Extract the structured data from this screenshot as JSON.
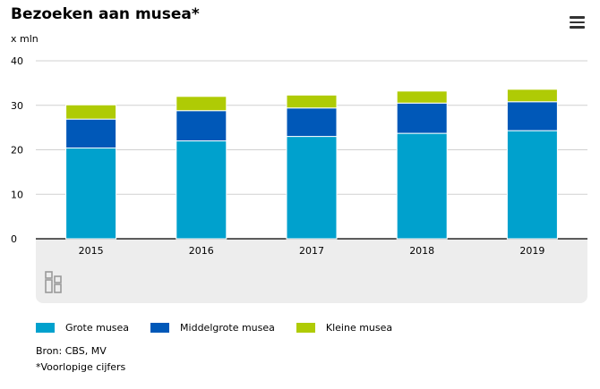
{
  "header": {
    "title": "Bezoeken aan musea*",
    "unit": "x mln"
  },
  "menu": {
    "icon": "hamburger-menu-icon"
  },
  "chart_data": {
    "type": "bar",
    "stacked": true,
    "categories": [
      "2015",
      "2016",
      "2017",
      "2018",
      "2019"
    ],
    "series": [
      {
        "name": "Grote musea",
        "color": "#00a1cd",
        "values": [
          20.4,
          22.0,
          23.0,
          23.7,
          24.3
        ]
      },
      {
        "name": "Middelgrote musea",
        "color": "#0058b8",
        "values": [
          6.5,
          6.8,
          6.4,
          6.8,
          6.5
        ]
      },
      {
        "name": "Kleine musea",
        "color": "#afcb05",
        "values": [
          3.2,
          3.2,
          2.9,
          2.7,
          2.8
        ]
      }
    ],
    "yticks": [
      "0",
      "10",
      "20",
      "30",
      "40"
    ],
    "ylim": [
      0,
      40
    ],
    "grid": true,
    "legend_position": "bottom"
  },
  "footer": {
    "source": "Bron: CBS, MV",
    "note": "*Voorlopige cijfers"
  },
  "logo": {
    "icon": "cbs-logo-icon"
  }
}
